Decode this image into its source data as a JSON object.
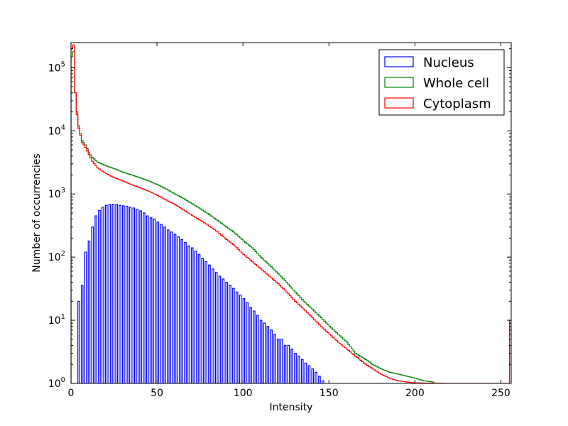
{
  "chart_data": {
    "type": "histogram",
    "xlabel": "Intensity",
    "ylabel": "Number of occurrencies",
    "xlim": [
      0,
      256
    ],
    "ylim": [
      1,
      250000
    ],
    "yscale": "log",
    "grid": false,
    "legend_placement": "top-right",
    "x_ticks": [
      0,
      50,
      100,
      150,
      200,
      250
    ],
    "y_ticks": [
      {
        "value": 1,
        "base": "10",
        "exp": "0"
      },
      {
        "value": 10,
        "base": "10",
        "exp": "1"
      },
      {
        "value": 100,
        "base": "10",
        "exp": "2"
      },
      {
        "value": 1000,
        "base": "10",
        "exp": "3"
      },
      {
        "value": 10000,
        "base": "10",
        "exp": "4"
      },
      {
        "value": 100000,
        "base": "10",
        "exp": "5"
      }
    ],
    "series": [
      {
        "name": "Nucleus",
        "color": "#0000ff",
        "style": "comb-even",
        "points": [
          [
            4,
            20
          ],
          [
            5,
            18
          ],
          [
            7,
            70
          ],
          [
            8,
            120
          ],
          [
            9,
            150
          ],
          [
            10,
            180
          ],
          [
            12,
            300
          ],
          [
            14,
            450
          ],
          [
            16,
            550
          ],
          [
            18,
            620
          ],
          [
            20,
            660
          ],
          [
            22,
            680
          ],
          [
            24,
            690
          ],
          [
            26,
            680
          ],
          [
            28,
            660
          ],
          [
            30,
            650
          ],
          [
            32,
            640
          ],
          [
            34,
            620
          ],
          [
            36,
            600
          ],
          [
            38,
            570
          ],
          [
            40,
            540
          ],
          [
            42,
            500
          ],
          [
            44,
            450
          ],
          [
            46,
            420
          ],
          [
            48,
            400
          ],
          [
            50,
            360
          ],
          [
            52,
            330
          ],
          [
            54,
            300
          ],
          [
            56,
            270
          ],
          [
            58,
            250
          ],
          [
            60,
            230
          ],
          [
            62,
            210
          ],
          [
            64,
            190
          ],
          [
            66,
            170
          ],
          [
            68,
            150
          ],
          [
            70,
            140
          ],
          [
            72,
            125
          ],
          [
            74,
            110
          ],
          [
            76,
            95
          ],
          [
            78,
            85
          ],
          [
            80,
            75
          ],
          [
            82,
            65
          ],
          [
            84,
            57
          ],
          [
            86,
            50
          ],
          [
            88,
            45
          ],
          [
            90,
            40
          ],
          [
            92,
            36
          ],
          [
            94,
            32
          ],
          [
            96,
            28
          ],
          [
            98,
            25
          ],
          [
            100,
            22
          ],
          [
            102,
            19
          ],
          [
            104,
            16
          ],
          [
            106,
            14
          ],
          [
            108,
            12
          ],
          [
            110,
            10
          ],
          [
            112,
            9
          ],
          [
            114,
            8
          ],
          [
            116,
            7
          ],
          [
            118,
            6
          ],
          [
            120,
            5
          ],
          [
            122,
            5
          ],
          [
            124,
            4
          ],
          [
            126,
            4
          ],
          [
            128,
            3.5
          ],
          [
            130,
            3
          ],
          [
            132,
            2.7
          ],
          [
            134,
            2.4
          ],
          [
            136,
            2.1
          ],
          [
            138,
            1.9
          ],
          [
            140,
            1.7
          ],
          [
            142,
            1.5
          ],
          [
            144,
            1.3
          ],
          [
            146,
            1.1
          ]
        ]
      },
      {
        "name": "Whole cell",
        "color": "#008000",
        "style": "step",
        "points": [
          [
            0,
            150000
          ],
          [
            1,
            180000
          ],
          [
            2,
            40000
          ],
          [
            3,
            20000
          ],
          [
            4,
            12000
          ],
          [
            5,
            9000
          ],
          [
            6,
            7000
          ],
          [
            8,
            6000
          ],
          [
            10,
            4500
          ],
          [
            12,
            3800
          ],
          [
            15,
            3200
          ],
          [
            20,
            2800
          ],
          [
            25,
            2500
          ],
          [
            30,
            2200
          ],
          [
            35,
            2000
          ],
          [
            40,
            1800
          ],
          [
            45,
            1600
          ],
          [
            50,
            1400
          ],
          [
            55,
            1200
          ],
          [
            60,
            1000
          ],
          [
            65,
            850
          ],
          [
            70,
            700
          ],
          [
            75,
            580
          ],
          [
            80,
            470
          ],
          [
            85,
            380
          ],
          [
            90,
            300
          ],
          [
            95,
            240
          ],
          [
            100,
            180
          ],
          [
            105,
            140
          ],
          [
            110,
            100
          ],
          [
            115,
            75
          ],
          [
            120,
            55
          ],
          [
            125,
            40
          ],
          [
            130,
            28
          ],
          [
            135,
            20
          ],
          [
            140,
            15
          ],
          [
            145,
            11
          ],
          [
            150,
            8
          ],
          [
            155,
            6
          ],
          [
            160,
            4.5
          ],
          [
            165,
            3
          ],
          [
            170,
            2.5
          ],
          [
            175,
            2
          ],
          [
            180,
            1.7
          ],
          [
            185,
            1.5
          ],
          [
            190,
            1.4
          ],
          [
            195,
            1.3
          ],
          [
            200,
            1.2
          ],
          [
            205,
            1.1
          ],
          [
            210,
            1.05
          ]
        ]
      },
      {
        "name": "Cytoplasm",
        "color": "#ff0000",
        "style": "step",
        "points": [
          [
            0,
            200000
          ],
          [
            1,
            230000
          ],
          [
            2,
            40000
          ],
          [
            3,
            18000
          ],
          [
            4,
            11000
          ],
          [
            5,
            8500
          ],
          [
            6,
            6500
          ],
          [
            8,
            5500
          ],
          [
            10,
            4200
          ],
          [
            12,
            3300
          ],
          [
            15,
            2600
          ],
          [
            20,
            2100
          ],
          [
            25,
            1800
          ],
          [
            30,
            1600
          ],
          [
            35,
            1400
          ],
          [
            40,
            1250
          ],
          [
            45,
            1100
          ],
          [
            50,
            950
          ],
          [
            55,
            800
          ],
          [
            60,
            680
          ],
          [
            65,
            560
          ],
          [
            70,
            460
          ],
          [
            75,
            380
          ],
          [
            80,
            310
          ],
          [
            85,
            250
          ],
          [
            90,
            190
          ],
          [
            95,
            150
          ],
          [
            100,
            110
          ],
          [
            105,
            85
          ],
          [
            110,
            65
          ],
          [
            115,
            50
          ],
          [
            120,
            38
          ],
          [
            125,
            28
          ],
          [
            130,
            20
          ],
          [
            135,
            15
          ],
          [
            140,
            11
          ],
          [
            145,
            8
          ],
          [
            150,
            6
          ],
          [
            155,
            4.5
          ],
          [
            160,
            3.5
          ],
          [
            165,
            2.7
          ],
          [
            170,
            2.1
          ],
          [
            175,
            1.7
          ],
          [
            180,
            1.4
          ],
          [
            185,
            1.2
          ],
          [
            190,
            1.1
          ],
          [
            195,
            1.05
          ],
          [
            200,
            1.02
          ],
          [
            210,
            1.01
          ],
          [
            220,
            1.0
          ],
          [
            230,
            1.0
          ],
          [
            240,
            1.0
          ],
          [
            250,
            1.0
          ],
          [
            254,
            1.0
          ],
          [
            255,
            10
          ]
        ]
      }
    ]
  }
}
